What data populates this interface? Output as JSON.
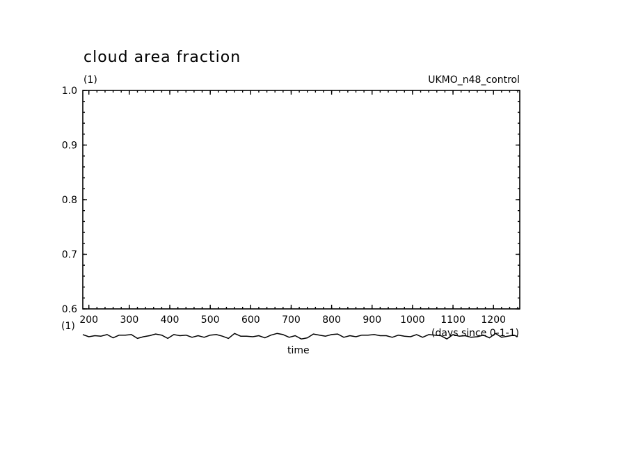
{
  "chart_data": {
    "type": "line",
    "title": "cloud area fraction",
    "units_label": "(1)",
    "dataset_label": "UKMO_n48_control",
    "xlabel": "time",
    "x_units": "(days since 0-1-1)",
    "ylim": [
      0.6,
      1.0
    ],
    "xlim": [
      185,
      1265
    ],
    "xticks": [
      "200",
      "300",
      "400",
      "500",
      "600",
      "700",
      "800",
      "900",
      "1000",
      "1100",
      "1200"
    ],
    "yticks": [
      "1.0",
      "0.9",
      "0.8",
      "0.7",
      "0.6"
    ],
    "y_lower_label": "(1)",
    "grid": false,
    "series": [
      {
        "x": [
          185,
          200,
          215,
          230,
          245,
          260,
          275,
          290,
          305,
          320,
          335,
          350,
          365,
          380,
          395,
          410,
          425,
          440,
          455,
          470,
          485,
          500,
          515,
          530,
          545,
          560,
          575,
          590,
          605,
          620,
          635,
          650,
          665,
          680,
          695,
          710,
          725,
          740,
          755,
          770,
          785,
          800,
          815,
          830,
          845,
          860,
          875,
          890,
          905,
          920,
          935,
          950,
          965,
          980,
          995,
          1010,
          1025,
          1040,
          1055,
          1070,
          1085,
          1100,
          1115,
          1130,
          1145,
          1160,
          1175,
          1190,
          1205,
          1220,
          1235,
          1250,
          1260
        ],
        "y": [
          0.553,
          0.549,
          0.551,
          0.55,
          0.553,
          0.547,
          0.552,
          0.552,
          0.553,
          0.546,
          0.549,
          0.551,
          0.554,
          0.552,
          0.546,
          0.553,
          0.551,
          0.552,
          0.548,
          0.551,
          0.548,
          0.552,
          0.553,
          0.55,
          0.546,
          0.555,
          0.55,
          0.55,
          0.549,
          0.551,
          0.547,
          0.552,
          0.555,
          0.553,
          0.548,
          0.551,
          0.545,
          0.547,
          0.554,
          0.552,
          0.55,
          0.553,
          0.554,
          0.548,
          0.551,
          0.549,
          0.552,
          0.552,
          0.553,
          0.551,
          0.551,
          0.548,
          0.552,
          0.55,
          0.549,
          0.553,
          0.548,
          0.553,
          0.552,
          0.551,
          0.545,
          0.553,
          0.55,
          0.551,
          0.548,
          0.549,
          0.552,
          0.547,
          0.555,
          0.548,
          0.55,
          0.552,
          0.549
        ]
      }
    ]
  }
}
